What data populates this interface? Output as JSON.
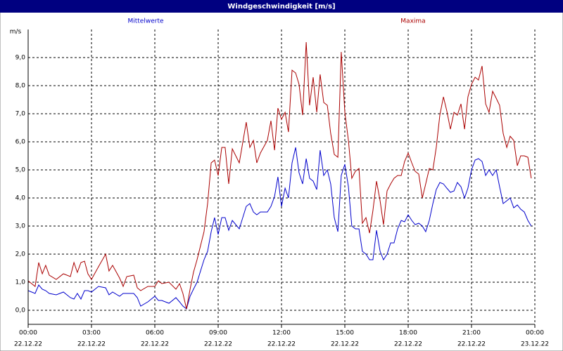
{
  "chart_data": {
    "type": "line",
    "title": "Windgeschwindigkeit [m/s]",
    "y_unit": "m/s",
    "x": [
      0,
      0.33,
      0.5,
      0.67,
      0.83,
      1,
      1.33,
      1.67,
      2,
      2.17,
      2.33,
      2.5,
      2.67,
      2.83,
      3,
      3.33,
      3.67,
      3.83,
      4,
      4.33,
      4.5,
      4.67,
      5,
      5.17,
      5.33,
      5.67,
      6,
      6.17,
      6.33,
      6.67,
      7,
      7.17,
      7.33,
      7.5,
      7.67,
      7.83,
      8,
      8.33,
      8.5,
      8.67,
      8.83,
      9,
      9.17,
      9.33,
      9.5,
      9.67,
      10,
      10.33,
      10.5,
      10.67,
      10.83,
      11,
      11.33,
      11.5,
      11.67,
      11.83,
      12,
      12.17,
      12.33,
      12.5,
      12.67,
      12.83,
      13,
      13.17,
      13.33,
      13.5,
      13.67,
      13.83,
      14,
      14.17,
      14.33,
      14.5,
      14.67,
      14.83,
      15,
      15.17,
      15.33,
      15.5,
      15.67,
      15.83,
      16,
      16.17,
      16.33,
      16.5,
      16.67,
      16.83,
      17,
      17.17,
      17.33,
      17.5,
      17.67,
      17.83,
      18,
      18.17,
      18.33,
      18.5,
      18.67,
      18.83,
      19,
      19.17,
      19.33,
      19.5,
      19.67,
      19.83,
      20,
      20.17,
      20.33,
      20.5,
      20.67,
      20.83,
      21,
      21.17,
      21.33,
      21.5,
      21.67,
      21.83,
      22,
      22.17,
      22.33,
      22.5,
      22.67,
      22.83,
      23,
      23.17,
      23.33,
      23.5,
      23.67,
      23.83
    ],
    "series": [
      {
        "name": "Mittelwerte",
        "color": "#0000cc",
        "values": [
          0.7,
          0.6,
          0.9,
          0.75,
          0.7,
          0.6,
          0.55,
          0.65,
          0.45,
          0.4,
          0.6,
          0.4,
          0.7,
          0.7,
          0.65,
          0.85,
          0.8,
          0.55,
          0.65,
          0.5,
          0.6,
          0.6,
          0.6,
          0.45,
          0.15,
          0.3,
          0.5,
          0.35,
          0.35,
          0.25,
          0.45,
          0.3,
          0.15,
          0.05,
          0.5,
          0.75,
          1.0,
          1.8,
          2.1,
          2.8,
          3.3,
          2.7,
          3.3,
          3.3,
          2.85,
          3.2,
          2.9,
          3.7,
          3.8,
          3.5,
          3.4,
          3.5,
          3.5,
          3.7,
          4.05,
          4.75,
          3.7,
          4.35,
          4.0,
          5.25,
          5.8,
          4.9,
          4.5,
          5.4,
          4.7,
          4.6,
          4.3,
          5.7,
          4.8,
          5.0,
          4.5,
          3.3,
          2.8,
          4.8,
          5.2,
          4.4,
          3.0,
          2.9,
          2.9,
          2.1,
          2.0,
          1.8,
          1.8,
          2.85,
          2.1,
          1.8,
          2.0,
          2.4,
          2.4,
          2.9,
          3.2,
          3.15,
          3.4,
          3.2,
          3.05,
          3.1,
          3.0,
          2.8,
          3.2,
          3.8,
          4.3,
          4.55,
          4.5,
          4.35,
          4.2,
          4.25,
          4.55,
          4.4,
          4.0,
          4.35,
          5.0,
          5.35,
          5.4,
          5.3,
          4.8,
          5.0,
          4.8,
          5.0,
          4.4,
          3.8,
          3.9,
          4.0,
          3.65,
          3.75,
          3.6,
          3.5,
          3.2,
          3.0
        ]
      },
      {
        "name": "Maxima",
        "color": "#aa0000",
        "values": [
          1.05,
          0.85,
          1.7,
          1.3,
          1.6,
          1.25,
          1.1,
          1.3,
          1.2,
          1.7,
          1.35,
          1.7,
          1.75,
          1.3,
          1.1,
          1.55,
          2.0,
          1.4,
          1.6,
          1.15,
          0.85,
          1.2,
          1.25,
          0.8,
          0.7,
          0.85,
          0.85,
          1.05,
          0.95,
          1.0,
          0.75,
          0.95,
          0.6,
          0.05,
          0.75,
          1.35,
          1.8,
          2.8,
          3.8,
          5.25,
          5.35,
          4.8,
          5.8,
          5.8,
          4.5,
          5.75,
          5.25,
          6.7,
          5.8,
          6.05,
          5.25,
          5.6,
          6.05,
          6.75,
          5.7,
          7.2,
          6.8,
          7.05,
          6.35,
          8.55,
          8.45,
          8.05,
          6.95,
          9.55,
          7.3,
          8.3,
          7.05,
          8.4,
          7.4,
          7.3,
          6.3,
          5.55,
          5.45,
          9.2,
          7.05,
          6.05,
          4.7,
          4.95,
          5.05,
          3.1,
          3.3,
          2.75,
          3.55,
          4.6,
          3.9,
          3.05,
          4.25,
          4.5,
          4.7,
          4.8,
          4.8,
          5.3,
          5.6,
          5.25,
          4.95,
          4.85,
          4.0,
          4.5,
          5.05,
          5.0,
          5.8,
          6.95,
          7.6,
          7.1,
          6.45,
          7.05,
          6.95,
          7.35,
          6.45,
          7.6,
          8.05,
          8.3,
          8.2,
          8.7,
          7.35,
          7.05,
          7.8,
          7.55,
          7.3,
          6.3,
          5.8,
          6.2,
          6.05,
          5.15,
          5.5,
          5.5,
          5.45,
          4.7
        ]
      }
    ],
    "xlim": [
      0,
      24
    ],
    "xticks": [
      {
        "value": 0,
        "label": "00:00"
      },
      {
        "value": 3,
        "label": "03:00"
      },
      {
        "value": 6,
        "label": "06:00"
      },
      {
        "value": 9,
        "label": "09:00"
      },
      {
        "value": 12,
        "label": "12:00"
      },
      {
        "value": 15,
        "label": "15:00"
      },
      {
        "value": 18,
        "label": "18:00"
      },
      {
        "value": 21,
        "label": "21:00"
      },
      {
        "value": 24,
        "label": "00:00"
      }
    ],
    "xtick_dates": [
      "22.12.22",
      "22.12.22",
      "22.12.22",
      "22.12.22",
      "22.12.22",
      "22.12.22",
      "22.12.22",
      "22.12.22",
      "23.12.22"
    ],
    "ylim": [
      -0.5,
      10
    ],
    "yticks": [
      {
        "value": 0,
        "label": "0,0"
      },
      {
        "value": 1,
        "label": "1,0"
      },
      {
        "value": 2,
        "label": "2,0"
      },
      {
        "value": 3,
        "label": "3,0"
      },
      {
        "value": 4,
        "label": "4,0"
      },
      {
        "value": 5,
        "label": "5,0"
      },
      {
        "value": 6,
        "label": "6,0"
      },
      {
        "value": 7,
        "label": "7,0"
      },
      {
        "value": 8,
        "label": "8,0"
      },
      {
        "value": 9,
        "label": "9,0"
      }
    ],
    "grid": true
  }
}
